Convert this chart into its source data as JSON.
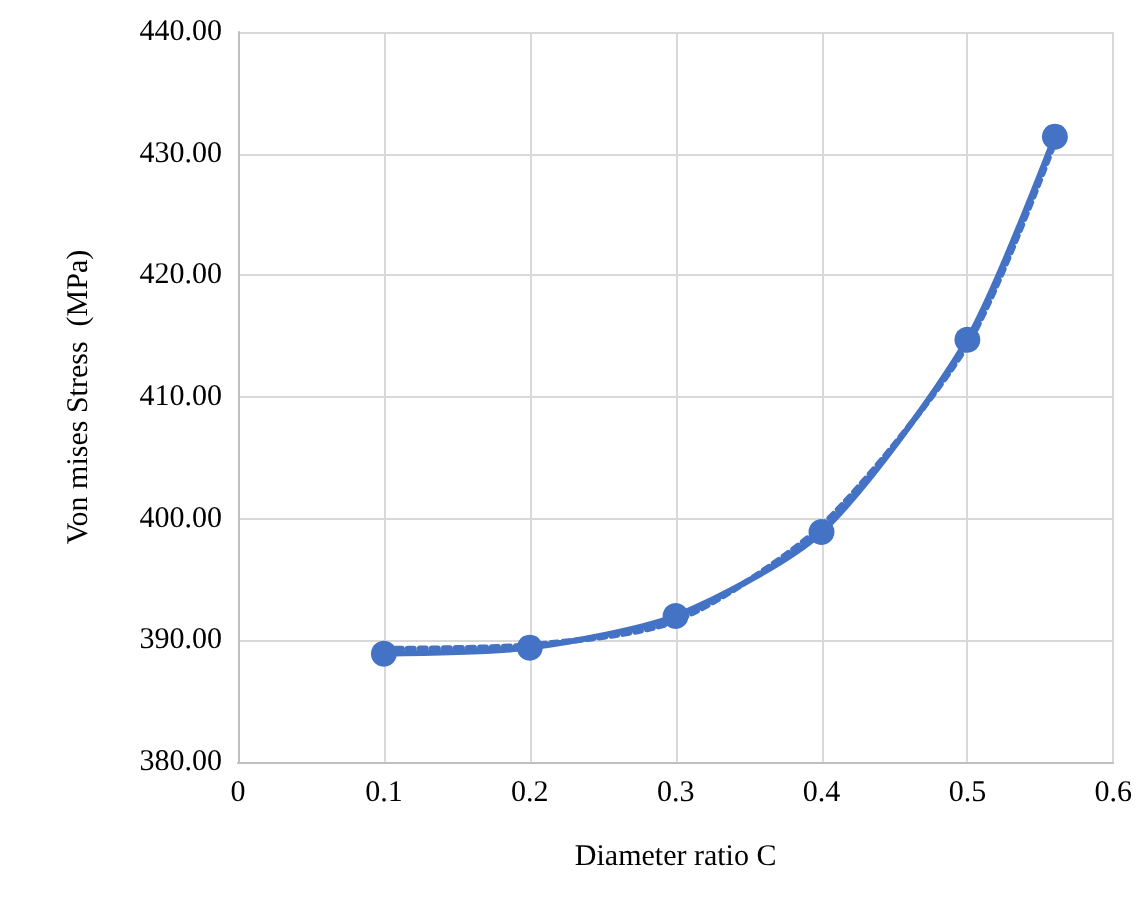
{
  "chart_data": {
    "type": "line",
    "xlabel": "Diameter ratio C",
    "ylabel": "Von mises Stress  (MPa)",
    "xlim": [
      0,
      0.6
    ],
    "xticks": [
      0,
      0.1,
      0.2,
      0.3,
      0.4,
      0.5,
      0.6
    ],
    "ylim": [
      380,
      440
    ],
    "yticks": [
      {
        "value": 380,
        "label": "380.00"
      },
      {
        "value": 390,
        "label": "390.00"
      },
      {
        "value": 400,
        "label": "400.00"
      },
      {
        "value": 410,
        "label": "410.00"
      },
      {
        "value": 420,
        "label": "420.00"
      },
      {
        "value": 430,
        "label": "430.00"
      },
      {
        "value": 440,
        "label": "440.00"
      }
    ],
    "grid": true,
    "series": [
      {
        "color": "#4472c4",
        "x": [
          0.1,
          0.2,
          0.3,
          0.4,
          0.5,
          0.56
        ],
        "values": [
          388.9,
          389.4,
          392.0,
          398.9,
          414.7,
          431.4
        ],
        "marker": "circle",
        "line_style": "solid"
      },
      {
        "color": "#4472c4",
        "x": [
          0.1,
          0.2,
          0.3,
          0.4,
          0.5,
          0.56
        ],
        "values": [
          389.3,
          389.6,
          391.6,
          399.4,
          414.3,
          431.0
        ],
        "marker": "none",
        "line_style": "dotted"
      }
    ]
  }
}
